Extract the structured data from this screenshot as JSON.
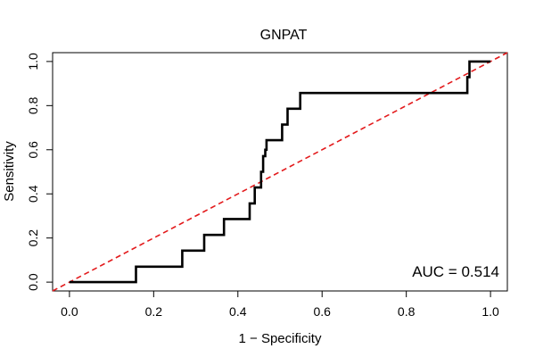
{
  "chart_data": {
    "type": "line",
    "title": "GNPAT",
    "xlabel": "1 − Specificity",
    "ylabel": "Sensitivity",
    "xlim": [
      -0.04,
      1.04
    ],
    "ylim": [
      -0.04,
      1.04
    ],
    "x_ticks": [
      0,
      0.2,
      0.4,
      0.6,
      0.8,
      1
    ],
    "x_tick_labels": [
      "0.0",
      "0.2",
      "0.4",
      "0.6",
      "0.8",
      "1.0"
    ],
    "y_ticks": [
      0,
      0.2,
      0.4,
      0.6,
      0.8,
      1
    ],
    "y_tick_labels": [
      "0.0",
      "0.2",
      "0.4",
      "0.6",
      "0.8",
      "1.0"
    ],
    "series": [
      {
        "name": "ROC curve",
        "color": "#000000",
        "x": [
          0,
          0.158,
          0.158,
          0.268,
          0.268,
          0.32,
          0.32,
          0.367,
          0.367,
          0.428,
          0.428,
          0.44,
          0.44,
          0.455,
          0.455,
          0.46,
          0.46,
          0.465,
          0.465,
          0.468,
          0.468,
          0.505,
          0.505,
          0.518,
          0.518,
          0.548,
          0.548,
          0.945,
          0.945,
          0.95,
          0.95,
          1.0
        ],
        "y": [
          0,
          0,
          0.07,
          0.07,
          0.143,
          0.143,
          0.214,
          0.214,
          0.286,
          0.286,
          0.357,
          0.357,
          0.429,
          0.429,
          0.5,
          0.5,
          0.571,
          0.571,
          0.6,
          0.6,
          0.643,
          0.643,
          0.714,
          0.714,
          0.786,
          0.786,
          0.857,
          0.857,
          0.929,
          0.929,
          1.0,
          1.0
        ]
      },
      {
        "name": "Reference line",
        "color": "#e31a1c",
        "dashed": true,
        "x": [
          -0.04,
          1.04
        ],
        "y": [
          -0.04,
          1.04
        ]
      }
    ],
    "annotation": "AUC = 0.514"
  }
}
